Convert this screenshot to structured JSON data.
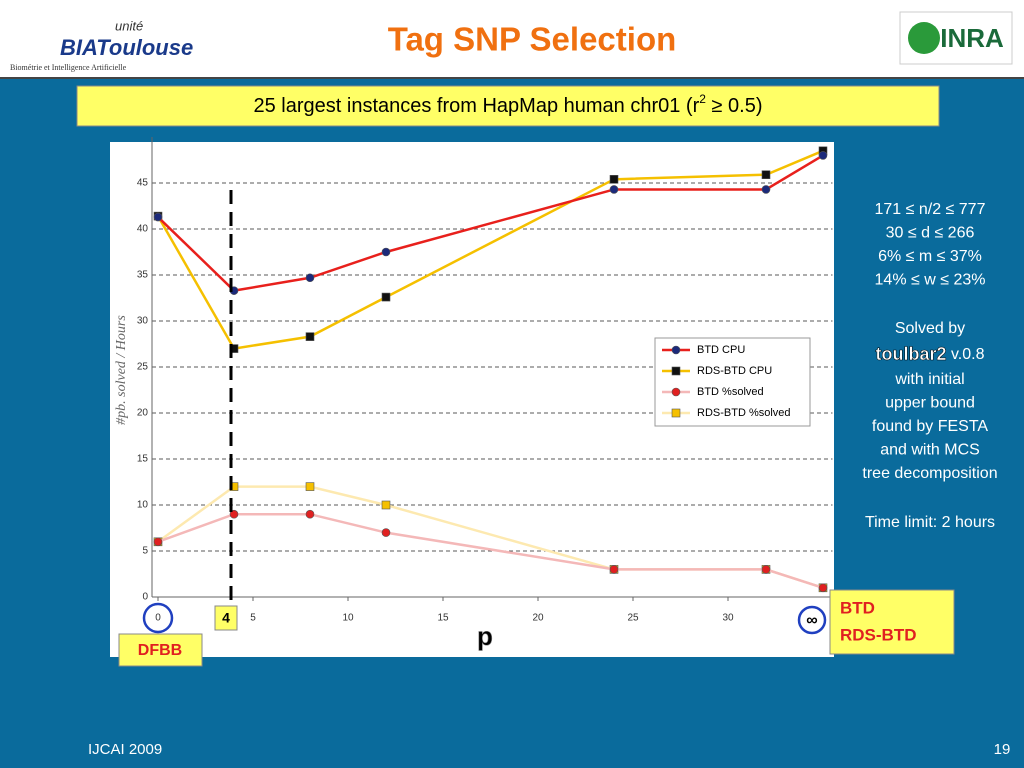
{
  "header": {
    "title": "Tag SNP Selection",
    "logo_left": {
      "top": "unité",
      "main": "BIAToulouse",
      "sub": "Biométrie et Intelligence Artificielle"
    },
    "logo_right": "INRA"
  },
  "subtitle": {
    "before": "25 largest instances from HapMap human chr01 (r",
    "sup": "2",
    "after": " ≥ 0.5)"
  },
  "chart_data": {
    "type": "line",
    "y_label": "#pb. solved / Hours",
    "x_label": "p",
    "x": [
      0,
      4,
      8,
      12,
      24,
      32,
      35
    ],
    "xlim": [
      0,
      35.5
    ],
    "xticks": [
      0,
      5,
      10,
      15,
      20,
      25,
      30
    ],
    "ylim": [
      0,
      50
    ],
    "yticks": [
      0,
      5,
      10,
      15,
      20,
      25,
      30,
      35,
      40,
      45
    ],
    "grid": true,
    "series": [
      {
        "name": "BTD CPU",
        "color": "#e8201c",
        "marker": "circle",
        "marker_color": "#1c2a7a",
        "values": [
          41.3,
          33.3,
          34.7,
          37.5,
          44.3,
          44.3,
          48
        ]
      },
      {
        "name": "RDS-BTD  CPU",
        "color": "#f5c000",
        "marker": "square",
        "marker_color": "#111111",
        "values": [
          41.4,
          27,
          28.3,
          32.6,
          45.4,
          45.9,
          48.5
        ]
      },
      {
        "name": "BTD %solved",
        "color": "#f4b8b8",
        "marker": "circle",
        "marker_color": "#e02020",
        "values": [
          6,
          9,
          9,
          7,
          3,
          3,
          1
        ]
      },
      {
        "name": "RDS-BTD  %solved",
        "color": "#fde9b0",
        "marker": "square",
        "marker_color": "#f5c000",
        "values": [
          6,
          12,
          12,
          10,
          3,
          3,
          1
        ]
      }
    ],
    "annotations": {
      "threshold": {
        "value": 4,
        "label": "4"
      },
      "dfbb": "DFBB",
      "infinity": "∞",
      "methods": [
        "BTD",
        "RDS-BTD"
      ]
    }
  },
  "notes": {
    "bounds": [
      "171 ≤ n/2 ≤ 777",
      "30 ≤ d ≤ 266",
      "6% ≤ m ≤ 37%",
      "14% ≤ w ≤ 23%"
    ],
    "solver": {
      "line1": "Solved by",
      "tool": "toulbar2",
      "version": " v.0.8",
      "rest": [
        "with initial",
        "upper bound",
        "found by FESTA",
        "and with MCS",
        "tree decomposition"
      ]
    },
    "time_limit": "Time limit: 2 hours"
  },
  "footer": {
    "left": "IJCAI 2009",
    "page": "19"
  }
}
